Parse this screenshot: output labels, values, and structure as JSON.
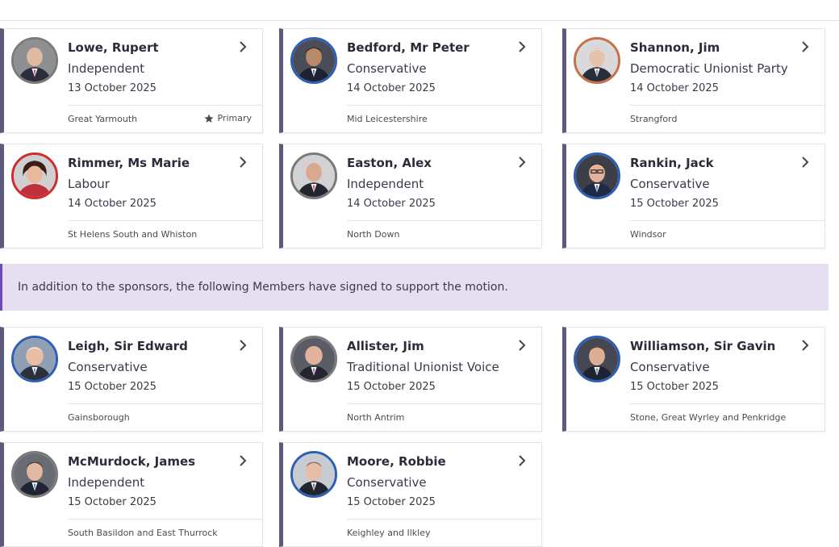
{
  "notice_text": "In addition to the sponsors, the following Members have signed to support the motion.",
  "border_colors": {
    "independent": "#7a7a7a",
    "conservative": "#2e5fb5",
    "dup": "#c8704a",
    "labour": "#d22b2b"
  },
  "sponsors": [
    {
      "name": "Lowe, Rupert",
      "party": "Independent",
      "date": "13 October 2025",
      "constituency": "Great Yarmouth",
      "badge": "Primary"
    },
    {
      "name": "Bedford, Mr Peter",
      "party": "Conservative",
      "date": "14 October 2025",
      "constituency": "Mid Leicestershire"
    },
    {
      "name": "Shannon, Jim",
      "party": "Democratic Unionist Party",
      "date": "14 October 2025",
      "constituency": "Strangford"
    },
    {
      "name": "Rimmer, Ms Marie",
      "party": "Labour",
      "date": "14 October 2025",
      "constituency": "St Helens South and Whiston"
    },
    {
      "name": "Easton, Alex",
      "party": "Independent",
      "date": "14 October 2025",
      "constituency": "North Down"
    },
    {
      "name": "Rankin, Jack",
      "party": "Conservative",
      "date": "15 October 2025",
      "constituency": "Windsor"
    }
  ],
  "supporters": [
    {
      "name": "Leigh, Sir Edward",
      "party": "Conservative",
      "date": "15 October 2025",
      "constituency": "Gainsborough"
    },
    {
      "name": "Allister, Jim",
      "party": "Traditional Unionist Voice",
      "date": "15 October 2025",
      "constituency": "North Antrim"
    },
    {
      "name": "Williamson, Sir Gavin",
      "party": "Conservative",
      "date": "15 October 2025",
      "constituency": "Stone, Great Wyrley and Penkridge"
    },
    {
      "name": "McMurdock, James",
      "party": "Independent",
      "date": "15 October 2025",
      "constituency": "South Basildon and East Thurrock"
    },
    {
      "name": "Moore, Robbie",
      "party": "Conservative",
      "date": "15 October 2025",
      "constituency": "Keighley and Ilkley"
    }
  ]
}
